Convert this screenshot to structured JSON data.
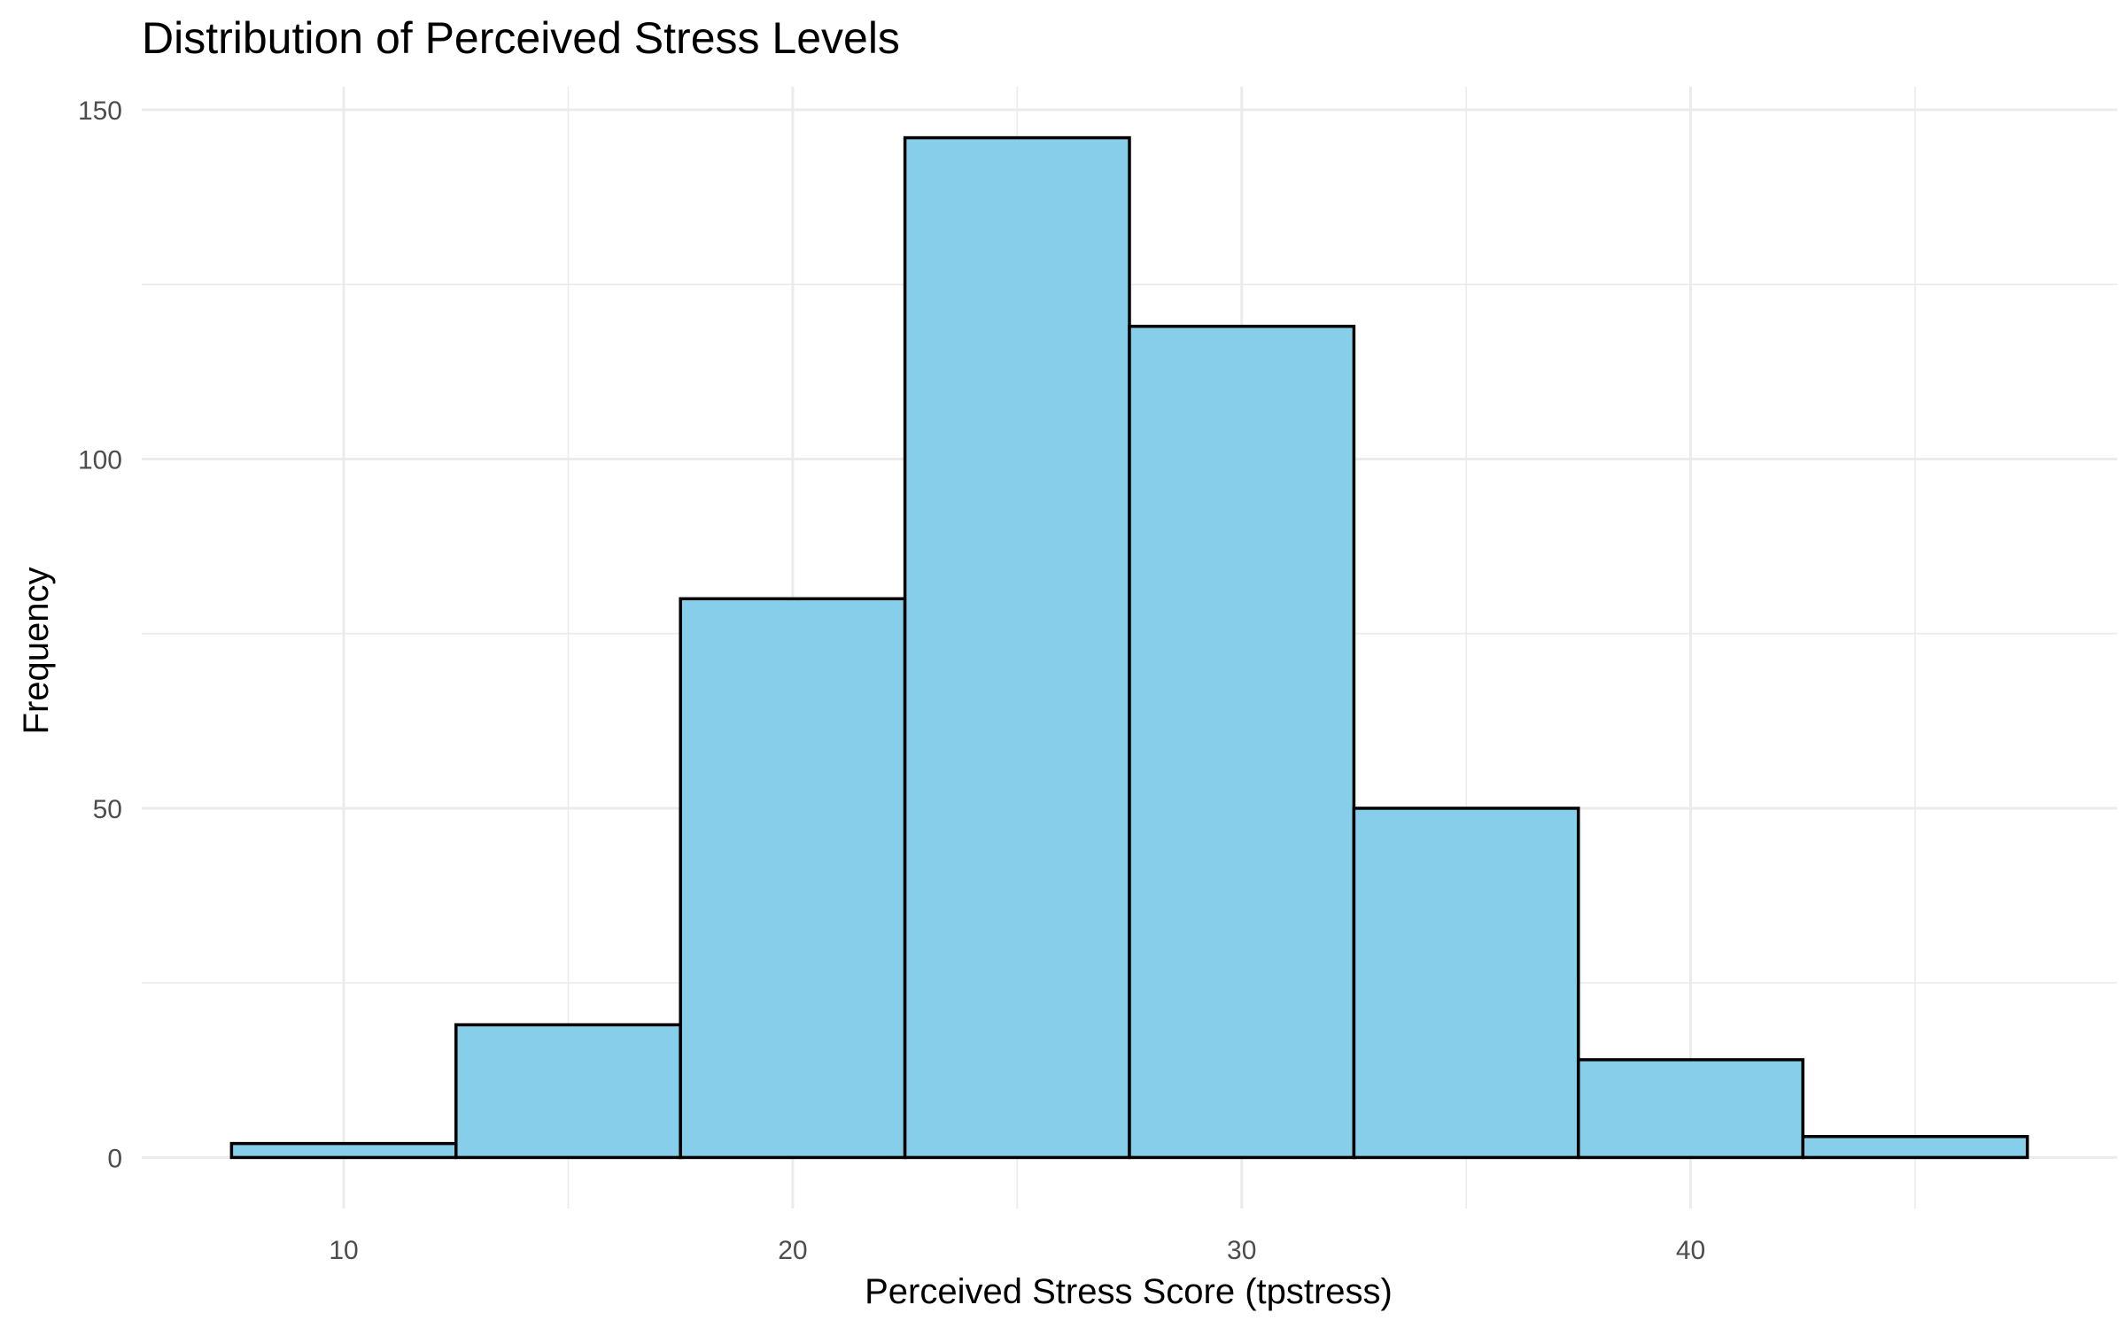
{
  "chart_data": {
    "type": "bar",
    "title": "Distribution of Perceived Stress Levels",
    "xlabel": "Perceived Stress Score (tpstress)",
    "ylabel": "Frequency",
    "bin_width": 5,
    "bins": [
      {
        "start": 7.5,
        "end": 12.5,
        "count": 2
      },
      {
        "start": 12.5,
        "end": 17.5,
        "count": 19
      },
      {
        "start": 17.5,
        "end": 22.5,
        "count": 80
      },
      {
        "start": 22.5,
        "end": 27.5,
        "count": 146
      },
      {
        "start": 27.5,
        "end": 32.5,
        "count": 119
      },
      {
        "start": 32.5,
        "end": 37.5,
        "count": 50
      },
      {
        "start": 37.5,
        "end": 42.5,
        "count": 14
      },
      {
        "start": 42.5,
        "end": 47.5,
        "count": 3
      }
    ],
    "xlim": [
      5.5,
      49.5
    ],
    "ylim": [
      -7.3,
      153.3
    ],
    "x_ticks": [
      10,
      20,
      30,
      40
    ],
    "y_ticks": [
      0,
      50,
      100,
      150
    ],
    "x_minor_ticks": [
      15,
      25,
      35,
      45
    ],
    "y_minor_ticks": [
      25,
      75,
      125
    ],
    "grid": true,
    "bar_fill": "#87CEEB",
    "bar_stroke": "#000000"
  }
}
